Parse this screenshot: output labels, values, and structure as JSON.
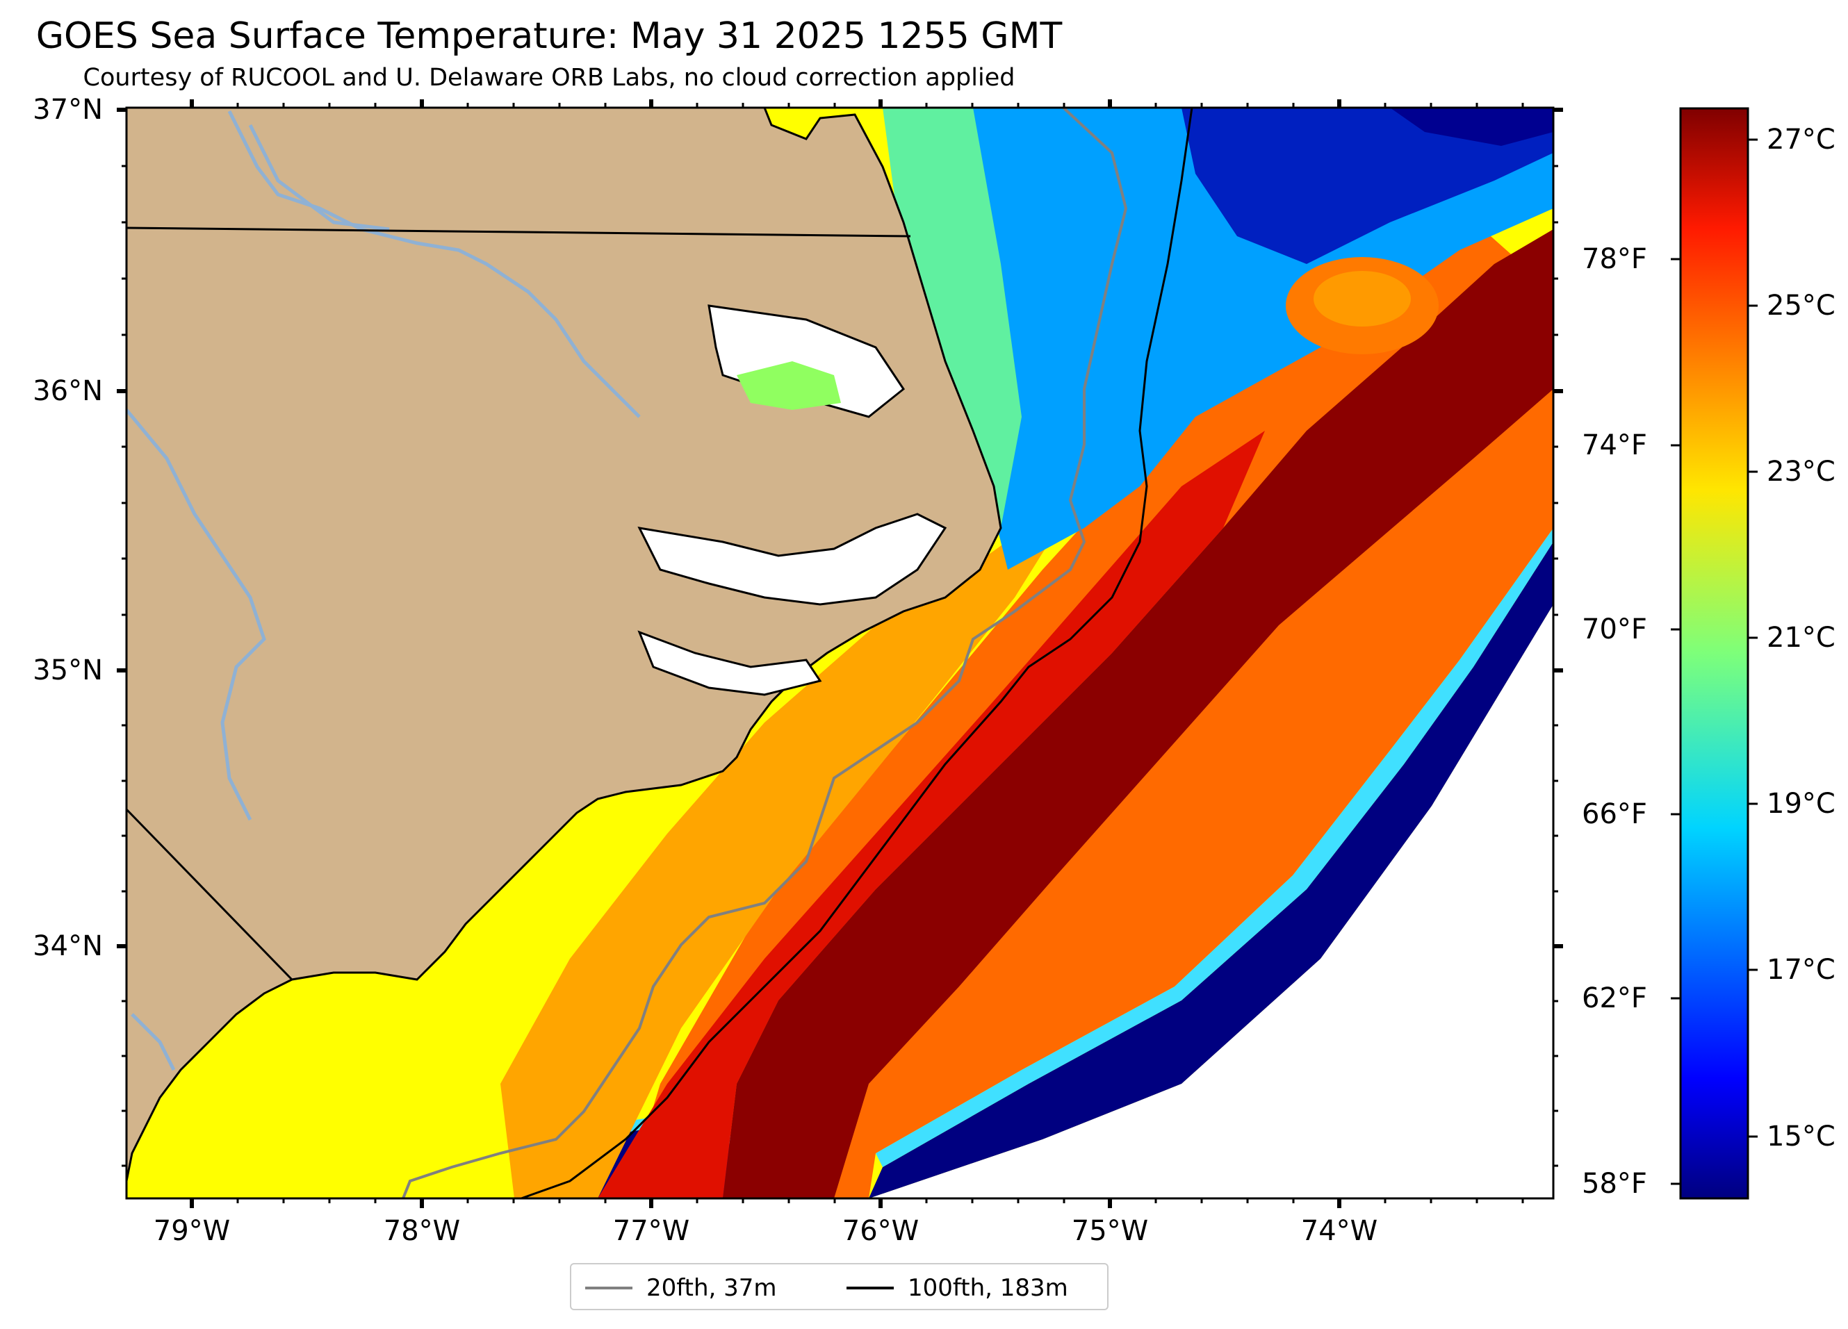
{
  "title": "GOES Sea Surface Temperature: May 31 2025 1255 GMT",
  "subtitle": "Courtesy of RUCOOL and U. Delaware ORB Labs, no cloud correction applied",
  "lat_labels": [
    "37°N",
    "36°N",
    "35°N",
    "34°N"
  ],
  "lon_labels": [
    "79°W",
    "78°W",
    "77°W",
    "76°W",
    "75°W",
    "74°W"
  ],
  "legend": {
    "items": [
      {
        "label": "20fth, 37m",
        "color": "#808080"
      },
      {
        "label": "100fth, 183m",
        "color": "#000000"
      }
    ]
  },
  "colorbar": {
    "celsius_labels": [
      "27°C",
      "25°C",
      "23°C",
      "21°C",
      "19°C",
      "17°C",
      "15°C"
    ],
    "fahrenheit_labels": [
      "78°F",
      "74°F",
      "70°F",
      "66°F",
      "62°F",
      "58°F"
    ],
    "colormap": "jet"
  },
  "colors": {
    "land": "#d2b48c",
    "state_border": "#000000",
    "river": "#8fb1d4",
    "isobath_20fth": "#808080",
    "isobath_100fth": "#000000",
    "no_data": "#ffffff"
  }
}
